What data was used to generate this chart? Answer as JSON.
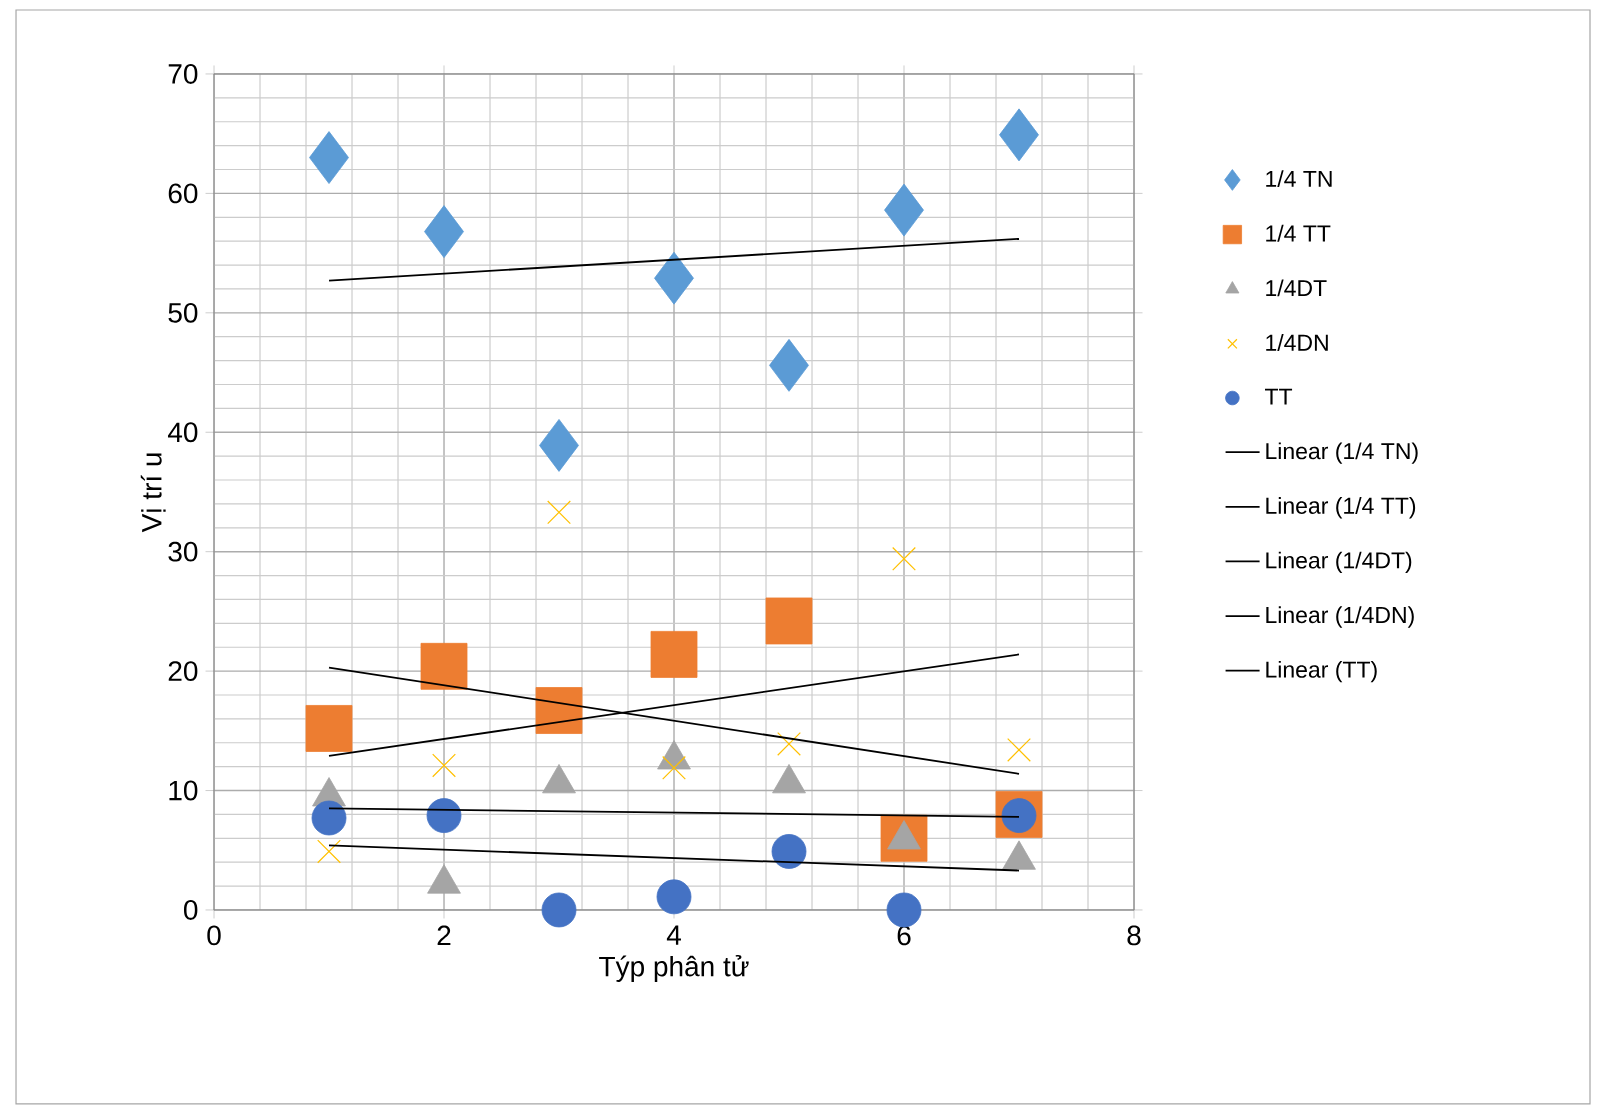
{
  "chart_data": {
    "type": "scatter",
    "xlabel": "Týp phân tử",
    "ylabel": "Vị trí u",
    "xlim": [
      0,
      8
    ],
    "ylim": [
      0,
      70
    ],
    "xticks": [
      0,
      2,
      4,
      6,
      8
    ],
    "yticks": [
      0,
      10,
      20,
      30,
      40,
      50,
      60,
      70
    ],
    "grid": true,
    "legend": "right",
    "series": [
      {
        "name": "1/4 TN",
        "color": "#5b9bd5",
        "marker": "diamond",
        "x": [
          1,
          2,
          3,
          4,
          5,
          6,
          7
        ],
        "values": [
          63.0,
          56.8,
          38.9,
          52.9,
          45.6,
          58.6,
          64.9
        ]
      },
      {
        "name": "1/4 TT",
        "color": "#ed7d31",
        "marker": "square",
        "x": [
          1,
          2,
          3,
          4,
          5,
          6,
          7
        ],
        "values": [
          15.2,
          20.4,
          16.7,
          21.4,
          24.2,
          6.0,
          8.0
        ]
      },
      {
        "name": "1/4DT",
        "color": "#a5a5a5",
        "marker": "triangle",
        "x": [
          1,
          2,
          3,
          4,
          5,
          6,
          7
        ],
        "values": [
          9.5,
          2.2,
          10.6,
          12.6,
          10.6,
          5.9,
          4.2
        ]
      },
      {
        "name": "1/4DN",
        "color": "#ffc000",
        "marker": "cross",
        "x": [
          1,
          2,
          3,
          4,
          5,
          6,
          7
        ],
        "values": [
          4.9,
          12.1,
          33.3,
          11.9,
          13.9,
          29.4,
          13.4
        ]
      },
      {
        "name": "TT",
        "color": "#4472c4",
        "marker": "circle",
        "x": [
          1,
          2,
          3,
          4,
          5,
          6,
          7
        ],
        "values": [
          7.7,
          7.9,
          0,
          1.1,
          4.9,
          0,
          7.9
        ]
      },
      {
        "name": "Linear (1/4 TN)",
        "type": "line",
        "color": "#000000",
        "marker": "none",
        "x": [
          1,
          7
        ],
        "values": [
          52.7,
          56.2
        ]
      },
      {
        "name": "Linear (1/4 TT)",
        "type": "line",
        "color": "#000000",
        "marker": "none",
        "x": [
          1,
          7
        ],
        "values": [
          12.9,
          21.4
        ]
      },
      {
        "name": "Linear (1/4DT)",
        "type": "line",
        "color": "#000000",
        "marker": "none",
        "x": [
          1,
          7
        ],
        "values": [
          20.3,
          11.4
        ]
      },
      {
        "name": "Linear (1/4DN)",
        "type": "line",
        "color": "#000000",
        "marker": "none",
        "x": [
          1,
          7
        ],
        "values": [
          5.4,
          3.3
        ]
      },
      {
        "name": "Linear (TT)",
        "type": "line",
        "color": "#000000",
        "marker": "none",
        "x": [
          1,
          7
        ],
        "values": [
          8.5,
          7.8
        ]
      }
    ]
  }
}
